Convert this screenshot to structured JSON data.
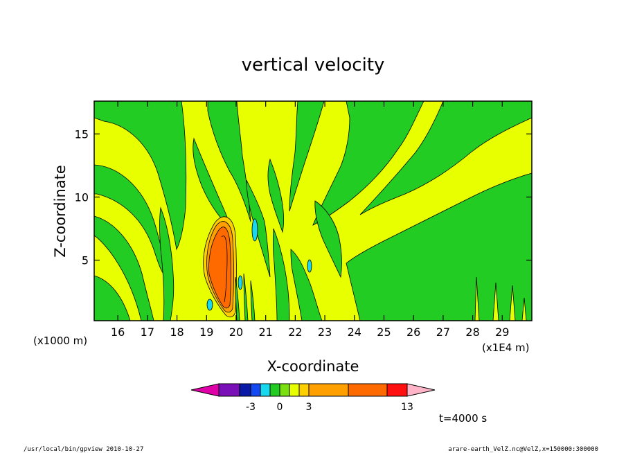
{
  "chart_data": {
    "type": "heatmap",
    "title": "vertical velocity",
    "xlabel": "X-coordinate",
    "ylabel": "Z-coordinate",
    "x_scale_note": "(x1E4 m)",
    "y_scale_note": "(x1000 m)",
    "xlim": [
      15.2,
      30.0
    ],
    "ylim": [
      0.2,
      17.6
    ],
    "x_ticks": [
      16,
      17,
      18,
      19,
      20,
      21,
      22,
      23,
      24,
      25,
      26,
      27,
      28,
      29
    ],
    "y_ticks": [
      5,
      10,
      15
    ],
    "colorbar": {
      "colors": [
        "#e000a8",
        "#7a10b8",
        "#0a1aa8",
        "#1448f0",
        "#18d8f0",
        "#22cc22",
        "#7ae010",
        "#e8ff00",
        "#ffd000",
        "#ffa000",
        "#ff6a00",
        "#ff1010",
        "#ff7878",
        "#ffb4c8"
      ],
      "labels": [
        {
          "text": "-3",
          "value": -3
        },
        {
          "text": "0",
          "value": 0
        },
        {
          "text": "3",
          "value": 3
        },
        {
          "text": "13",
          "value": 13
        }
      ]
    },
    "annotation": "t=4000 s",
    "footer_left": "/usr/local/bin/gpview   2010-10-27",
    "footer_right": "arare-earth_VelZ.nc@VelZ,x=150000:300000"
  }
}
